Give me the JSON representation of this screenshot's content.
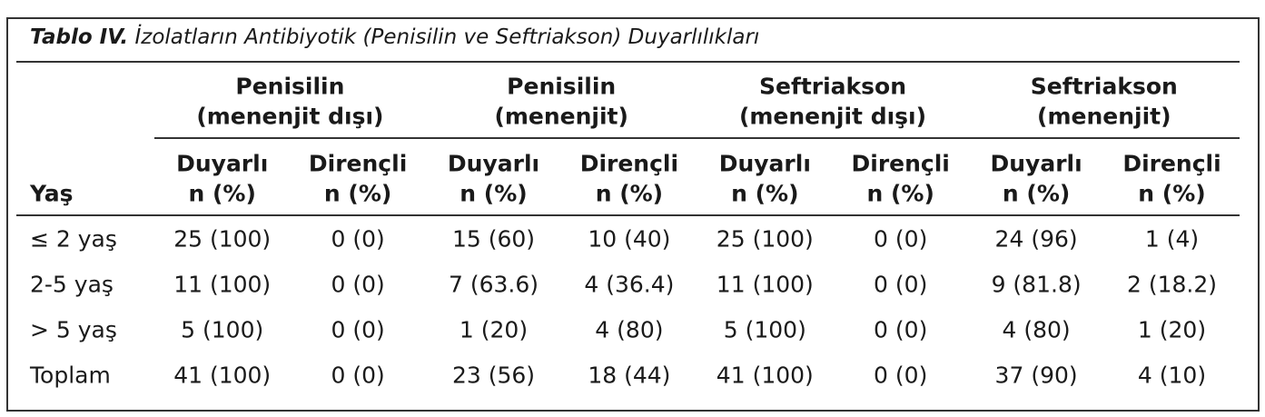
{
  "title": {
    "label": "Tablo IV.",
    "text": "İzolatların Antibiyotik (Penisilin ve Seftriakson) Duyarlılıkları"
  },
  "table": {
    "row_header": "Yaş",
    "groups": [
      [
        "Penisilin",
        "(menenjit dışı)"
      ],
      [
        "Penisilin",
        "(menenjit)"
      ],
      [
        "Seftriakson",
        "(menenjit dışı)"
      ],
      [
        "Seftriakson",
        "(menenjit)"
      ]
    ],
    "subheaders": [
      [
        "Duyarlı",
        "n (%)"
      ],
      [
        "Dirençli",
        "n (%)"
      ],
      [
        "Duyarlı",
        "n (%)"
      ],
      [
        "Dirençli",
        "n (%)"
      ],
      [
        "Duyarlı",
        "n (%)"
      ],
      [
        "Dirençli",
        "n (%)"
      ],
      [
        "Duyarlı",
        "n (%)"
      ],
      [
        "Dirençli",
        "n (%)"
      ]
    ],
    "rows": [
      [
        "≤ 2 yaş",
        "25 (100)",
        "0 (0)",
        "15 (60)",
        "10 (40)",
        "25 (100)",
        "0 (0)",
        "24 (96)",
        "1 (4)"
      ],
      [
        "2-5 yaş",
        "11 (100)",
        "0 (0)",
        "7 (63.6)",
        "4 (36.4)",
        "11 (100)",
        "0 (0)",
        "9 (81.8)",
        "2 (18.2)"
      ],
      [
        "> 5 yaş",
        "5 (100)",
        "0 (0)",
        "1 (20)",
        "4 (80)",
        "5 (100)",
        "0 (0)",
        "4 (80)",
        "1 (20)"
      ],
      [
        "Toplam",
        "41 (100)",
        "0 (0)",
        "23 (56)",
        "18 (44)",
        "41 (100)",
        "0 (0)",
        "37 (90)",
        "4 (10)"
      ]
    ]
  }
}
